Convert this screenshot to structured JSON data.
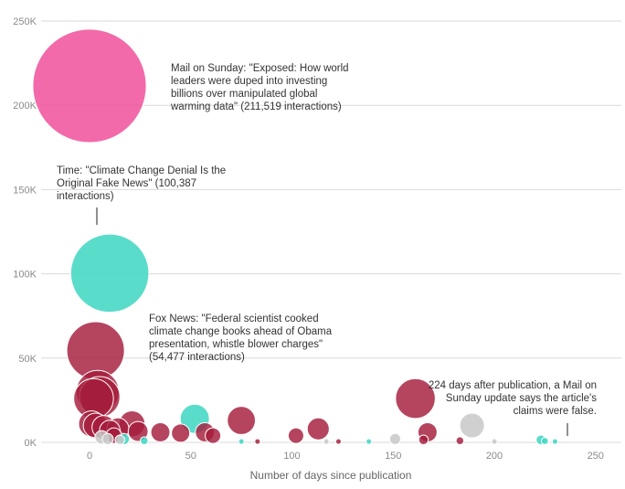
{
  "chart_data": {
    "type": "scatter",
    "subtype": "bubble",
    "xlabel": "Number of days since publication",
    "ylabel": "",
    "xlim": [
      -20,
      260
    ],
    "ylim": [
      0,
      250000
    ],
    "x_ticks": [
      0,
      50,
      100,
      150,
      200,
      250
    ],
    "y_ticks": [
      0,
      50000,
      100000,
      150000,
      200000,
      250000
    ],
    "y_tick_labels": [
      "0K",
      "50K",
      "100K",
      "150K",
      "200K",
      "250K"
    ],
    "grid": "horizontal",
    "legend": "none",
    "colors": {
      "mail": "#f0509a",
      "teal": "#3dd6c2",
      "red": "#a51c3c",
      "grey": "#c8c8c8"
    },
    "points": [
      {
        "x": 0,
        "y": 211519,
        "color": "mail"
      },
      {
        "x": 10,
        "y": 100387,
        "color": "teal"
      },
      {
        "x": 3,
        "y": 54477,
        "color": "red"
      },
      {
        "x": 4,
        "y": 30000,
        "color": "red"
      },
      {
        "x": 5,
        "y": 27000,
        "color": "red"
      },
      {
        "x": 2,
        "y": 26000,
        "color": "red"
      },
      {
        "x": 1,
        "y": 11000,
        "color": "red"
      },
      {
        "x": 3,
        "y": 10000,
        "color": "red"
      },
      {
        "x": 7,
        "y": 9000,
        "color": "red"
      },
      {
        "x": 10,
        "y": 7000,
        "color": "red"
      },
      {
        "x": 14,
        "y": 8000,
        "color": "red"
      },
      {
        "x": 21,
        "y": 11000,
        "color": "red"
      },
      {
        "x": 24,
        "y": 6500,
        "color": "red"
      },
      {
        "x": 12,
        "y": 4000,
        "color": "red"
      },
      {
        "x": 6,
        "y": 3000,
        "color": "grey"
      },
      {
        "x": 9,
        "y": 2000,
        "color": "grey"
      },
      {
        "x": 15,
        "y": 1500,
        "color": "grey"
      },
      {
        "x": 17,
        "y": 2000,
        "color": "teal"
      },
      {
        "x": 27,
        "y": 1000,
        "color": "teal"
      },
      {
        "x": 35,
        "y": 6000,
        "color": "red"
      },
      {
        "x": 45,
        "y": 5500,
        "color": "red"
      },
      {
        "x": 52,
        "y": 14000,
        "color": "teal"
      },
      {
        "x": 57,
        "y": 6000,
        "color": "red"
      },
      {
        "x": 61,
        "y": 4000,
        "color": "red"
      },
      {
        "x": 75,
        "y": 13000,
        "color": "red"
      },
      {
        "x": 75,
        "y": 500,
        "color": "teal"
      },
      {
        "x": 83,
        "y": 500,
        "color": "red"
      },
      {
        "x": 102,
        "y": 4000,
        "color": "red"
      },
      {
        "x": 113,
        "y": 8000,
        "color": "red"
      },
      {
        "x": 117,
        "y": 500,
        "color": "grey"
      },
      {
        "x": 123,
        "y": 500,
        "color": "red"
      },
      {
        "x": 138,
        "y": 500,
        "color": "teal"
      },
      {
        "x": 151,
        "y": 2000,
        "color": "grey"
      },
      {
        "x": 161,
        "y": 26000,
        "color": "red"
      },
      {
        "x": 165,
        "y": 1500,
        "color": "red"
      },
      {
        "x": 167,
        "y": 6000,
        "color": "red"
      },
      {
        "x": 183,
        "y": 1000,
        "color": "red"
      },
      {
        "x": 189,
        "y": 10000,
        "color": "grey"
      },
      {
        "x": 200,
        "y": 500,
        "color": "grey"
      },
      {
        "x": 223,
        "y": 1500,
        "color": "teal"
      },
      {
        "x": 225,
        "y": 800,
        "color": "teal"
      },
      {
        "x": 230,
        "y": 500,
        "color": "teal"
      }
    ],
    "annotations": [
      {
        "text": "Mail on Sunday: \"Exposed: How world leaders were duped into investing billions over manipulated global warming data\" (211,519 interactions)"
      },
      {
        "text": "Time: \"Climate Change Denial Is the Original Fake News\" (100,387 interactions)"
      },
      {
        "text": "Fox News: \"Federal scientist cooked climate change books ahead of Obama presentation, whistle blower charges\" (54,477 interactions)"
      },
      {
        "text": "224 days after publication, a Mail on Sunday update says the article's claims were false."
      }
    ]
  }
}
